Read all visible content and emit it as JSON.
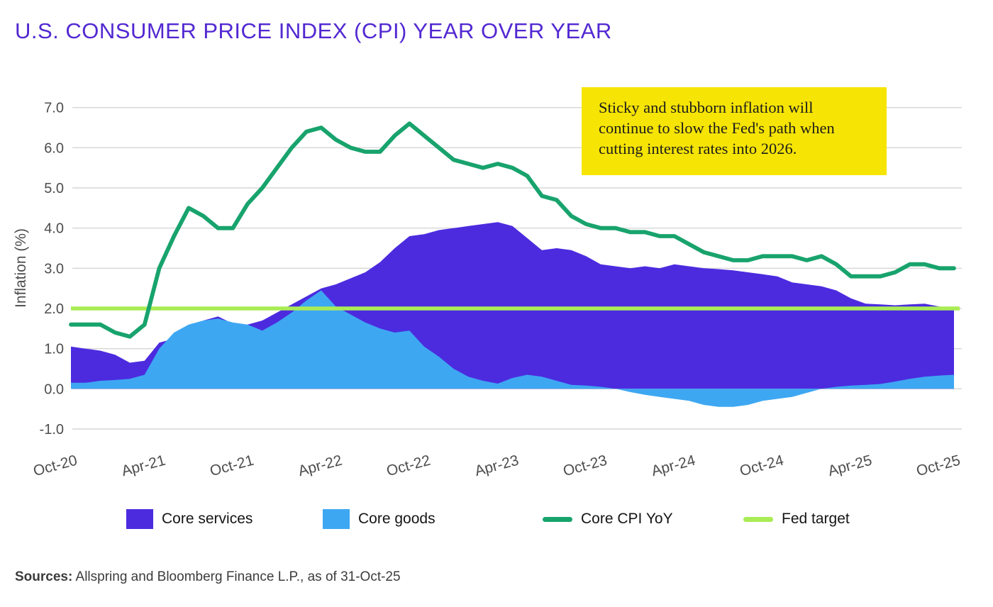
{
  "header": {
    "title": "U.S. CONSUMER PRICE INDEX (CPI) YEAR OVER YEAR"
  },
  "callout": {
    "lines": [
      "Sticky and stubborn inflation will",
      "continue to slow the Fed's path when",
      "cutting interest rates into 2026."
    ],
    "background": "#f6e404",
    "text_color": "#1d1d1d"
  },
  "legend": {
    "items": [
      {
        "label": "Core services",
        "swatch": "area",
        "color": "#4c2bdf"
      },
      {
        "label": "Core goods",
        "swatch": "area",
        "color": "#3ea7f2"
      },
      {
        "label": "Core CPI YoY",
        "swatch": "line",
        "color": "#18a36d"
      },
      {
        "label": "Fed target",
        "swatch": "line",
        "color": "#a9ec55"
      }
    ]
  },
  "sources": {
    "label": "Sources:",
    "text": " Allspring and Bloomberg Finance L.P., as of 31-Oct-25"
  },
  "colors": {
    "title": "#5228d2",
    "gridline": "#d6d6d6",
    "axis_text": "#4d4d4d"
  },
  "chart_data": {
    "type": "area",
    "title": "U.S. CONSUMER PRICE INDEX (CPI) YEAR OVER YEAR",
    "xlabel": "",
    "ylabel": "Inflation (%)",
    "ylim": [
      -1,
      7
    ],
    "grid": true,
    "legend_position": "bottom",
    "x_description": "Monthly, Oct-2020 through Oct-2025 (61 points)",
    "x_tick_labels": [
      "Oct-20",
      "Apr-21",
      "Oct-21",
      "Apr-22",
      "Oct-22",
      "Apr-23",
      "Oct-23",
      "Apr-24",
      "Oct-24",
      "Apr-25",
      "Oct-25"
    ],
    "x_tick_indices": [
      0,
      6,
      12,
      18,
      24,
      30,
      36,
      42,
      48,
      54,
      60
    ],
    "y_tick_labels": [
      "-1.0",
      "0.0",
      "1.0",
      "2.0",
      "3.0",
      "4.0",
      "5.0",
      "6.0",
      "7.0"
    ],
    "fed_target_value": 2.0,
    "series": [
      {
        "name": "Core services",
        "type": "area",
        "color": "#4c2bdf",
        "values": [
          1.05,
          1.0,
          0.95,
          0.85,
          0.65,
          0.7,
          1.15,
          1.25,
          1.45,
          1.7,
          1.8,
          1.62,
          1.6,
          1.7,
          1.9,
          2.1,
          2.3,
          2.5,
          2.6,
          2.75,
          2.9,
          3.15,
          3.5,
          3.8,
          3.85,
          3.95,
          4.0,
          4.05,
          4.1,
          4.15,
          4.05,
          3.75,
          3.45,
          3.5,
          3.45,
          3.3,
          3.1,
          3.05,
          3.0,
          3.05,
          3.0,
          3.1,
          3.05,
          3.0,
          2.98,
          2.95,
          2.9,
          2.85,
          2.8,
          2.65,
          2.6,
          2.55,
          2.45,
          2.25,
          2.12,
          2.1,
          2.08,
          2.1,
          2.12,
          2.05,
          2.0
        ]
      },
      {
        "name": "Core goods",
        "type": "area",
        "color": "#3ea7f2",
        "values": [
          0.15,
          0.15,
          0.2,
          0.22,
          0.25,
          0.35,
          1.0,
          1.4,
          1.6,
          1.7,
          1.75,
          1.65,
          1.6,
          1.45,
          1.65,
          1.9,
          2.2,
          2.45,
          2.05,
          1.85,
          1.65,
          1.5,
          1.4,
          1.45,
          1.05,
          0.8,
          0.5,
          0.3,
          0.2,
          0.13,
          0.27,
          0.35,
          0.3,
          0.2,
          0.1,
          0.08,
          0.05,
          0.0,
          -0.08,
          -0.15,
          -0.2,
          -0.25,
          -0.3,
          -0.4,
          -0.45,
          -0.45,
          -0.4,
          -0.3,
          -0.25,
          -0.2,
          -0.1,
          0.0,
          0.05,
          0.08,
          0.1,
          0.12,
          0.18,
          0.25,
          0.3,
          0.33,
          0.35
        ]
      },
      {
        "name": "Fed target",
        "type": "hline",
        "color": "#a9ec55",
        "value": 2.0
      },
      {
        "name": "Core CPI YoY",
        "type": "line",
        "color": "#18a36d",
        "values": [
          1.6,
          1.6,
          1.6,
          1.4,
          1.3,
          1.6,
          3.0,
          3.8,
          4.5,
          4.3,
          4.0,
          4.0,
          4.6,
          5.0,
          5.5,
          6.0,
          6.4,
          6.5,
          6.2,
          6.0,
          5.9,
          5.9,
          6.3,
          6.6,
          6.3,
          6.0,
          5.7,
          5.6,
          5.5,
          5.6,
          5.5,
          5.3,
          4.8,
          4.7,
          4.3,
          4.1,
          4.0,
          4.0,
          3.9,
          3.9,
          3.8,
          3.8,
          3.6,
          3.4,
          3.3,
          3.2,
          3.2,
          3.3,
          3.3,
          3.3,
          3.2,
          3.3,
          3.1,
          2.8,
          2.8,
          2.8,
          2.9,
          3.1,
          3.1,
          3.0,
          3.0
        ]
      }
    ]
  }
}
